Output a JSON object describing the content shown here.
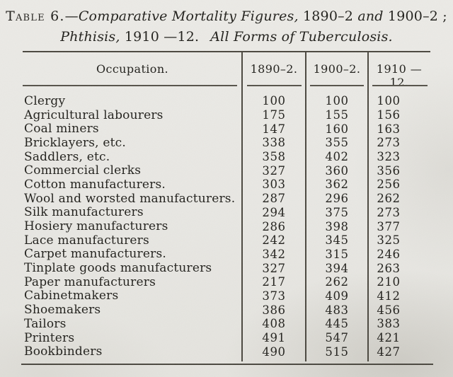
{
  "title": {
    "line1": [
      {
        "text": "Table 6.",
        "style": "smallcaps"
      },
      {
        "text": "—",
        "style": "roman"
      },
      {
        "text": "Comparative Mortality Figures,",
        "style": "italic"
      },
      {
        "text": " 1890–2 ",
        "style": "roman"
      },
      {
        "text": "and",
        "style": "italic"
      },
      {
        "text": " 1900–2 ;",
        "style": "roman"
      }
    ],
    "line2": [
      {
        "text": "Phthisis,",
        "style": "italic"
      },
      {
        "text": " 1910 —12.",
        "style": "roman"
      },
      {
        "text": "All Forms of Tuberculosis.",
        "style": "italic-gap"
      }
    ]
  },
  "table": {
    "columns": [
      "Occupation.",
      "1890–2.",
      "1900–2.",
      "1910 —12."
    ],
    "rows": [
      {
        "occupation": "Clergy",
        "dots": 5,
        "values": [
          "100",
          "100",
          "100"
        ]
      },
      {
        "occupation": "Agricultural labourers",
        "dots": 2,
        "values": [
          "175",
          "155",
          "156"
        ]
      },
      {
        "occupation": "Coal miners",
        "dots": 4,
        "values": [
          "147",
          "160",
          "163"
        ]
      },
      {
        "occupation": "Bricklayers, etc.",
        "dots": 3,
        "values": [
          "338",
          "355",
          "273"
        ]
      },
      {
        "occupation": "Saddlers, etc.",
        "dots": 4,
        "values": [
          "358",
          "402",
          "323"
        ]
      },
      {
        "occupation": "Commercial clerks",
        "dots": 3,
        "values": [
          "327",
          "360",
          "356"
        ]
      },
      {
        "occupation": "Cotton manufacturers.",
        "dots": 2,
        "values": [
          "303",
          "362",
          "256"
        ]
      },
      {
        "occupation": "Wool and worsted manufacturers.",
        "dots": 0,
        "values": [
          "287",
          "296",
          "262"
        ]
      },
      {
        "occupation": "Silk manufacturers",
        "dots": 3,
        "values": [
          "294",
          "375",
          "273"
        ]
      },
      {
        "occupation": "Hosiery manufacturers",
        "dots": 2,
        "values": [
          "286",
          "398",
          "377"
        ]
      },
      {
        "occupation": "Lace manufacturers",
        "dots": 3,
        "values": [
          "242",
          "345",
          "325"
        ]
      },
      {
        "occupation": "Carpet manufacturers.",
        "dots": 2,
        "values": [
          "342",
          "315",
          "246"
        ]
      },
      {
        "occupation": "Tinplate goods manufacturers",
        "dots": 1,
        "values": [
          "327",
          "394",
          "263"
        ]
      },
      {
        "occupation": "Paper manufacturers",
        "dots": 3,
        "values": [
          "217",
          "262",
          "210"
        ]
      },
      {
        "occupation": "Cabinetmakers",
        "dots": 4,
        "values": [
          "373",
          "409",
          "412"
        ]
      },
      {
        "occupation": "Shoemakers",
        "dots": 4,
        "values": [
          "386",
          "483",
          "456"
        ]
      },
      {
        "occupation": "Tailors",
        "dots": 5,
        "values": [
          "408",
          "445",
          "383"
        ]
      },
      {
        "occupation": "Printers",
        "dots": 5,
        "values": [
          "491",
          "547",
          "421"
        ]
      },
      {
        "occupation": "Bookbinders",
        "dots": 4,
        "values": [
          "490",
          "515",
          "427"
        ]
      }
    ]
  },
  "colors": {
    "paper": "#e9e8e4",
    "ink": "#201f1b",
    "rule": "#4a473f"
  }
}
